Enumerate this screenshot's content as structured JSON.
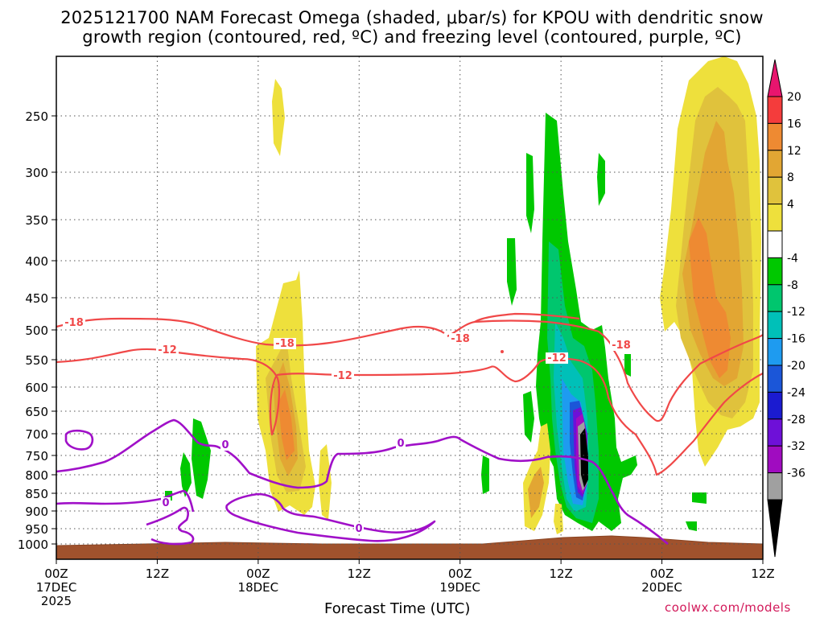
{
  "title_line1": "2025121700 NAM Forecast Omega (shaded, μbar/s) for KPOU with dendritic snow",
  "title_line2": "growth region (contoured, red, ºC) and freezing level (contoured, purple, ºC)",
  "credit": "coolwx.com/models",
  "chart_data": {
    "type": "time-height cross section",
    "title": "2025121700 NAM Forecast Omega (shaded, μbar/s) for KPOU with dendritic snow growth region (contoured, red, ºC) and freezing level (contoured, purple, ºC)",
    "xlabel": "Forecast Time (UTC)",
    "ylabel": "",
    "x_ticks": [
      {
        "hour": 0,
        "lines": [
          "00Z",
          "17DEC",
          "2025"
        ]
      },
      {
        "hour": 12,
        "lines": [
          "12Z"
        ]
      },
      {
        "hour": 24,
        "lines": [
          "00Z",
          "18DEC"
        ]
      },
      {
        "hour": 36,
        "lines": [
          "12Z"
        ]
      },
      {
        "hour": 48,
        "lines": [
          "00Z",
          "19DEC"
        ]
      },
      {
        "hour": 60,
        "lines": [
          "12Z"
        ]
      },
      {
        "hour": 72,
        "lines": [
          "00Z",
          "20DEC"
        ]
      },
      {
        "hour": 84,
        "lines": [
          "12Z"
        ]
      }
    ],
    "xlim_hours": [
      0,
      84
    ],
    "y_ticks": [
      250,
      300,
      350,
      400,
      450,
      500,
      550,
      600,
      650,
      700,
      750,
      800,
      850,
      900,
      950,
      1000
    ],
    "ylim_hPa": [
      1025,
      200
    ],
    "grid": true,
    "colorbar": {
      "labels": [
        "20",
        "16",
        "12",
        "8",
        "4",
        "-4",
        "-8",
        "-12",
        "-16",
        "-20",
        "-24",
        "-28",
        "-32",
        "-36"
      ],
      "colors": [
        "#e8156e",
        "#f43c3c",
        "#ee8a32",
        "#e2a633",
        "#e0c23c",
        "#eee03c",
        "#ffffff",
        "#00c800",
        "#00c66e",
        "#00c0b8",
        "#1e9bf0",
        "#1b56d8",
        "#1b1bd0",
        "#6e10d8",
        "#a00cc0",
        "#a0a0a0",
        "#000000"
      ]
    },
    "series": [
      {
        "name": "Omega (shaded)",
        "units": "μbar/s",
        "features": [
          {
            "hour": 10.8,
            "pressure": 770,
            "value": -6
          },
          {
            "hour": 25.2,
            "pressure": 660,
            "value": 10
          },
          {
            "hour": 46.0,
            "pressure": 380,
            "value": 4
          },
          {
            "hour": 58.8,
            "pressure": 640,
            "value": -16
          },
          {
            "hour": 62.8,
            "pressure": 760,
            "value": -36
          },
          {
            "hour": 79.0,
            "pressure": 400,
            "value": 12
          }
        ]
      },
      {
        "name": "Dendritic snow growth region",
        "color": "#f04848",
        "contour_levels": [
          "-18",
          "-12",
          "-18",
          "-12",
          "-18",
          "-12",
          "-18"
        ]
      },
      {
        "name": "Freezing level",
        "color": "#a010c8",
        "contour_levels": [
          "0",
          "0",
          "0",
          "0"
        ]
      }
    ]
  }
}
